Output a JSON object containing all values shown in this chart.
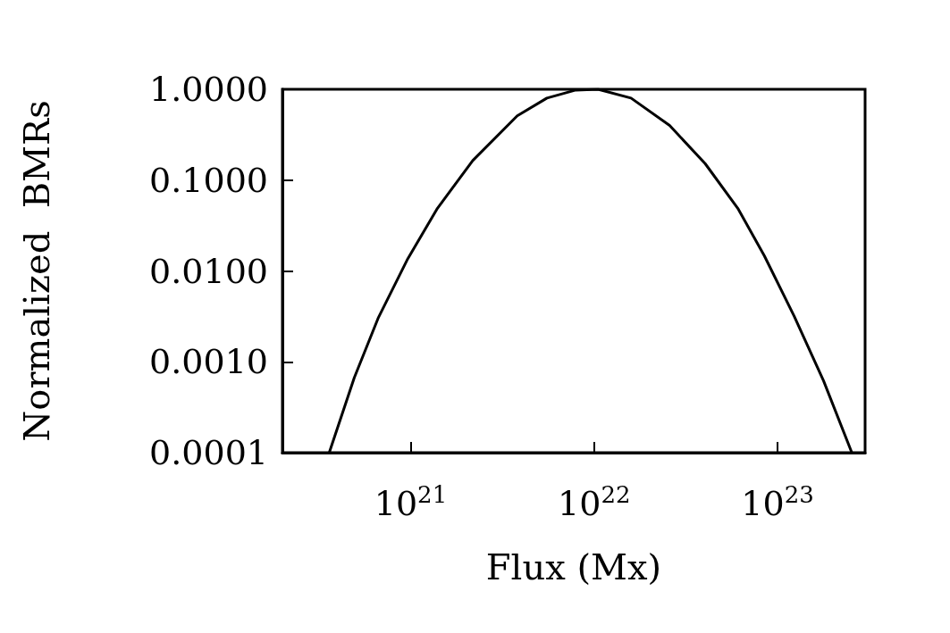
{
  "chart_data": {
    "type": "line",
    "xlabel": "Flux (Mx)",
    "ylabel": "Normalized  BMRs",
    "log": "xy",
    "grid": false,
    "marker": "none",
    "line_style": "solid",
    "xlim": [
      2e+20,
      3e+23
    ],
    "ylim": [
      0.0001,
      1
    ],
    "xticks": [
      {
        "value": 1e+21,
        "label": "10$^{21}$"
      },
      {
        "value": 1e+22,
        "label": "10$^{22}$"
      },
      {
        "value": 1e+23,
        "label": "10$^{23}$"
      }
    ],
    "yticks": [
      {
        "value": 0.0001,
        "label": "0.0001"
      },
      {
        "value": 0.001,
        "label": "0.0010"
      },
      {
        "value": 0.01,
        "label": "0.0100"
      },
      {
        "value": 0.1,
        "label": "0.1000"
      },
      {
        "value": 1,
        "label": "1.0000"
      }
    ],
    "x": [
      3.6e+20,
      4.93e+20,
      6.64e+20,
      9.64e+20,
      1.4e+21,
      2.18e+21,
      3.81e+21,
      5.53e+21,
      7.94e+21,
      1.05e+22,
      1.59e+22,
      2.58e+22,
      4.03e+22,
      6.07e+22,
      8.47e+22,
      1.23e+23,
      1.78e+23,
      2.54e+23
    ],
    "series": [
      {
        "color": "#000000",
        "values": [
          0.0001,
          0.00067,
          0.003,
          0.0136,
          0.049,
          0.164,
          0.51,
          0.8,
          0.98,
          1,
          0.8,
          0.4,
          0.152,
          0.049,
          0.0147,
          0.0032,
          0.00062,
          0.0001
        ]
      }
    ]
  }
}
